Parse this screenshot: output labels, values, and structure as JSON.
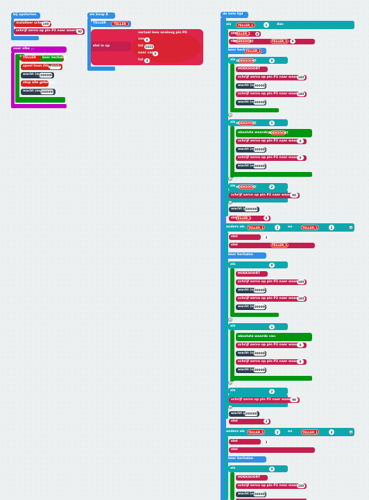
{
  "colors": {
    "event_blue": "#2f8fe6",
    "logic_teal": "#0fa7ae",
    "loop_green": "#009611",
    "var_red": "#d6221e",
    "pin_crimson": "#c41e4f",
    "basic_dark": "#2c3e50",
    "loop_magenta": "#c300c3",
    "math_pink": "#e0244c",
    "workspace_bg": "#ecf0f1"
  },
  "start_block": {
    "header": "bij opstarten",
    "line1_text": "installeer schermen",
    "line1_value": "100",
    "line2_text": "schrijf servo op pin P2 naar waarde",
    "line2_value": "90"
  },
  "forever_block": {
    "header": "voor elke ... ",
    "loop_var": "0",
    "count_text": "keer herhalen",
    "doe": "doe",
    "set_text": "stel",
    "set_var": "TELLER",
    "speed_text": "speel toon (Hz)",
    "speed_value": "Midden C",
    "wait_label": "wacht (ms)",
    "wait_value": "1000000",
    "stop_text": "stop alle geluiden",
    "wait2_value": "1000000"
  },
  "button_block": {
    "header": "als knop A",
    "set_text": "stel",
    "var_name": "TELLER",
    "set_to": "in op",
    "range_header": "vertaal lees analoog pin P0",
    "from_low_label": "van",
    "from_low": "0",
    "from_high_label": "tot",
    "from_high": "1023",
    "to_low_label": "naar van",
    "to_low": "0",
    "to_high_label": "tot",
    "to_high": "4"
  },
  "main_block": {
    "header": "de hele tijd",
    "if_label": "als",
    "then_label": "dan",
    "else_if_label": "anders als",
    "and_label": "en",
    "op_equals": "=",
    "op_lt": "<",
    "set_label": "stel",
    "to_label": "in op",
    "repeat_label": "keer herhalen",
    "doe_label": "doe",
    "servo_text": "schrijf servo op pin P2 naar waarde",
    "servo_values": [
      "180",
      "0",
      "90"
    ],
    "pause_label": "wacht (ms)",
    "pause_value": "1000000",
    "var_teller": "TELLER_1",
    "var_tussen": "HOEKSOORT",
    "absolute_text": "absolute waarde van",
    "val_0": "0",
    "val_1": "1",
    "val_2": "2",
    "val_3": "3"
  }
}
